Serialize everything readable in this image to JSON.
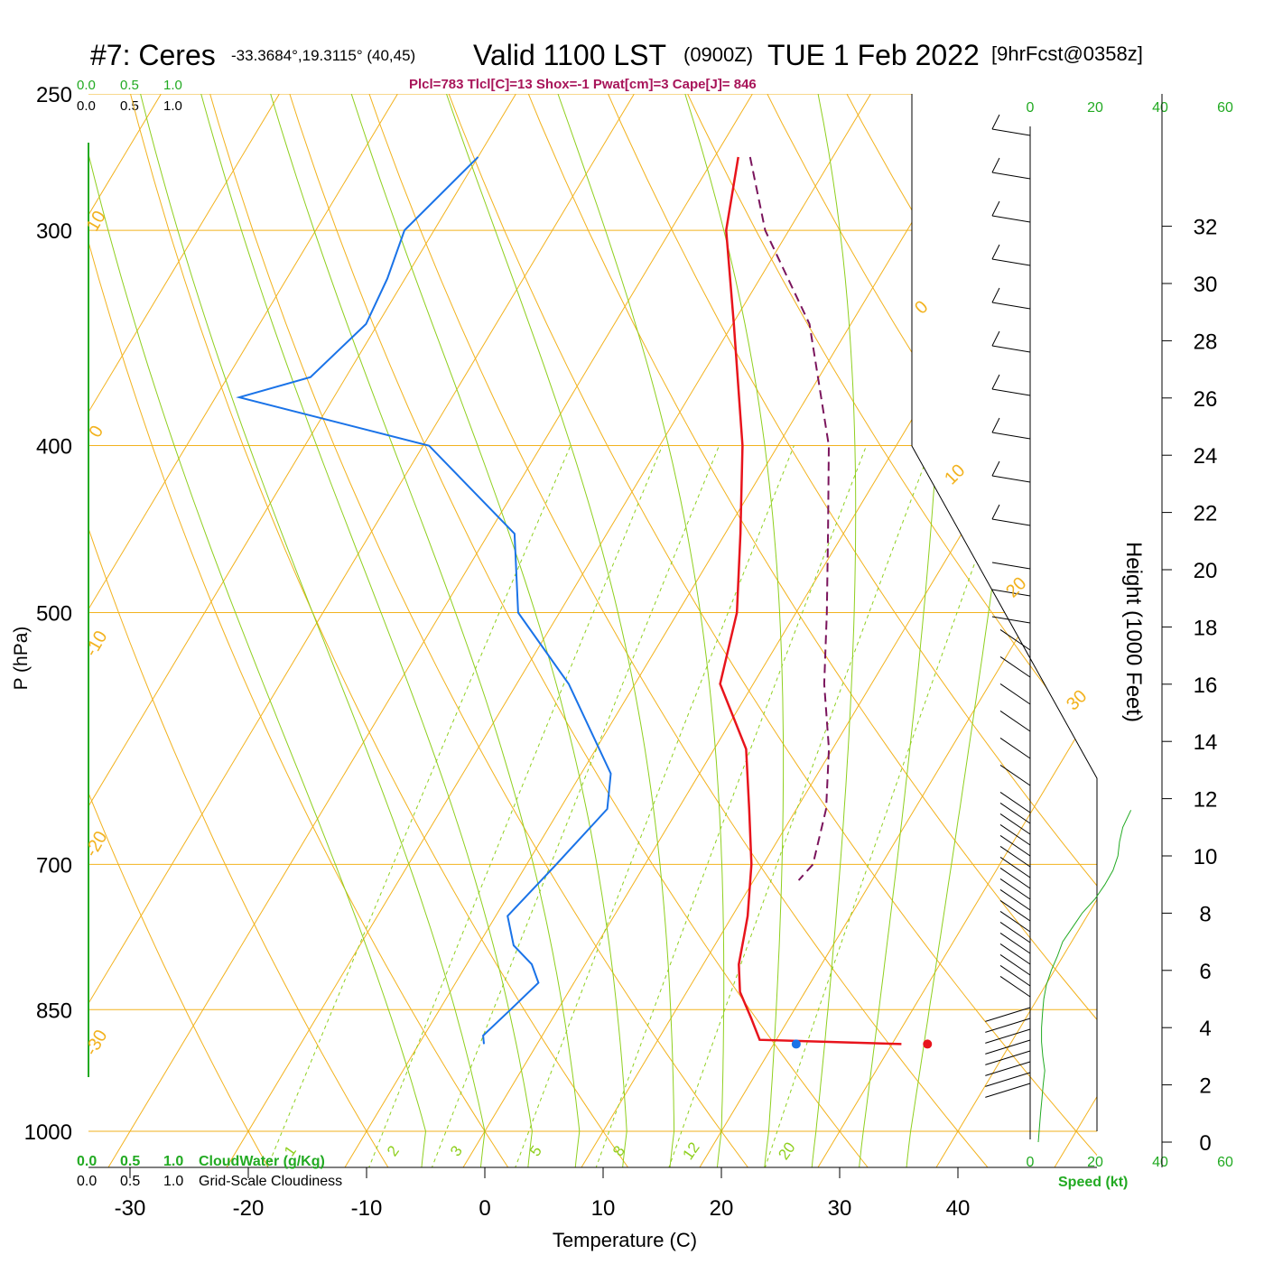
{
  "header": {
    "station": "#7: Ceres",
    "coords": "-33.3684°,19.3115° (40,45)",
    "valid": "Valid 1100 LST",
    "zulu": "(0900Z)",
    "date": "TUE 1 Feb 2022",
    "forecast": "[9hrFcst@0358z]",
    "indices": "Plcl=783 Tlcl[C]=13 Shox=-1 Pwat[cm]=3 Cape[J]= 846"
  },
  "top_scales": {
    "cloud_water_ticks": [
      "0.0",
      "0.5",
      "1.0"
    ],
    "cloudiness_ticks": [
      "0.0",
      "0.5",
      "1.0"
    ]
  },
  "bottom_legend": {
    "cloud_water_ticks": [
      "0.0",
      "0.5",
      "1.0"
    ],
    "cloud_water_label": "CloudWater (g/Kg)",
    "cloudiness_ticks": [
      "0.0",
      "0.5",
      "1.0"
    ],
    "cloudiness_label": "Grid-Scale Cloudiness"
  },
  "speed_axis": {
    "ticks": [
      "0",
      "20",
      "40",
      "60"
    ],
    "label": "Speed (kt)"
  },
  "colors": {
    "isobar": "#f2b21e",
    "dry_adiabat": "#8fcf1e",
    "mixing_ratio": "#8fcf1e",
    "temperature": "#e8141c",
    "dewpoint": "#1a73e8",
    "parcel": "#7a145c",
    "green_text": "#22aa22",
    "indices_text": "#a8155a"
  },
  "chart_data": {
    "type": "skew-t",
    "xlabel": "Temperature (C)",
    "ylabel": "P (hPa)",
    "y2label": "Height (1000 Feet)",
    "x_ticks": [
      -30,
      -20,
      -10,
      0,
      10,
      20,
      30,
      40
    ],
    "pressure_ticks": [
      250,
      300,
      400,
      500,
      700,
      850,
      1000
    ],
    "height_ticks": [
      0,
      2,
      4,
      6,
      8,
      10,
      12,
      14,
      16,
      18,
      20,
      22,
      24,
      26,
      28,
      30,
      32
    ],
    "isotherm_labels": [
      "10",
      "0",
      "-10",
      "-20",
      "-30",
      "0",
      "10",
      "20",
      "30"
    ],
    "mixing_ratio_labels": [
      "1",
      "2",
      "3",
      "5",
      "8",
      "12",
      "20"
    ],
    "temperature_profile": [
      [
        272,
        -28.0
      ],
      [
        300,
        -25.3
      ],
      [
        340,
        -19.9
      ],
      [
        400,
        -13.0
      ],
      [
        450,
        -8.7
      ],
      [
        500,
        -5.0
      ],
      [
        550,
        -2.8
      ],
      [
        600,
        2.7
      ],
      [
        650,
        6.0
      ],
      [
        700,
        9.0
      ],
      [
        750,
        11.3
      ],
      [
        770,
        12.0
      ],
      [
        800,
        13.0
      ],
      [
        830,
        14.5
      ],
      [
        860,
        16.8
      ],
      [
        885,
        18.6
      ],
      [
        890,
        30.8
      ]
    ],
    "dewpoint_profile": [
      [
        272,
        -50.0
      ],
      [
        300,
        -52.5
      ],
      [
        320,
        -51.5
      ],
      [
        340,
        -51.0
      ],
      [
        365,
        -53.0
      ],
      [
        375,
        -58.0
      ],
      [
        400,
        -39.5
      ],
      [
        450,
        -27.8
      ],
      [
        500,
        -23.5
      ],
      [
        550,
        -15.6
      ],
      [
        620,
        -7.5
      ],
      [
        650,
        -6.0
      ],
      [
        700,
        -7.5
      ],
      [
        750,
        -9.0
      ],
      [
        780,
        -7.0
      ],
      [
        800,
        -4.5
      ],
      [
        820,
        -3.0
      ],
      [
        850,
        -4.0
      ],
      [
        880,
        -5.0
      ],
      [
        890,
        -4.5
      ]
    ],
    "parcel_path": [
      [
        272,
        -27.0
      ],
      [
        300,
        -22.0
      ],
      [
        340,
        -13.5
      ],
      [
        400,
        -5.7
      ],
      [
        450,
        -1.3
      ],
      [
        500,
        2.6
      ],
      [
        550,
        6.0
      ],
      [
        600,
        9.7
      ],
      [
        650,
        12.5
      ],
      [
        700,
        14.2
      ],
      [
        715,
        13.8
      ]
    ],
    "surface_temperature": [
      890,
      33.0
    ],
    "surface_dewpoint": [
      890,
      21.9
    ],
    "height_profile": [
      [
        0,
        2.5
      ],
      [
        1000,
        3.2
      ],
      [
        1500,
        3.6
      ],
      [
        2000,
        4.0
      ],
      [
        2500,
        4.5
      ],
      [
        3000,
        3.9
      ],
      [
        3500,
        3.5
      ],
      [
        4000,
        3.5
      ],
      [
        4500,
        3.8
      ],
      [
        5000,
        4.2
      ],
      [
        5500,
        5.0
      ],
      [
        6000,
        6.5
      ],
      [
        6500,
        8.4
      ],
      [
        7000,
        10.0
      ],
      [
        7500,
        13.0
      ],
      [
        8000,
        16.0
      ],
      [
        8500,
        20.0
      ],
      [
        9000,
        23.0
      ],
      [
        9500,
        25.5
      ],
      [
        10000,
        27.0
      ],
      [
        10500,
        27.5
      ],
      [
        11000,
        28.5
      ],
      [
        11600,
        31.0
      ]
    ]
  }
}
